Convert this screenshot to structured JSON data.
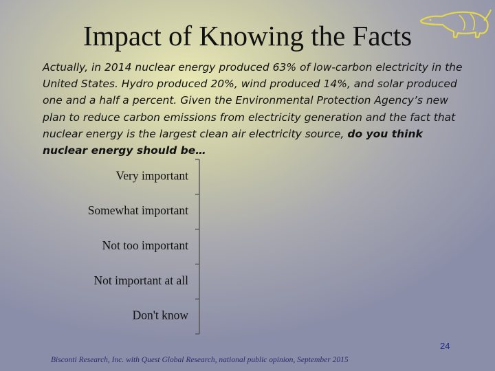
{
  "slide": {
    "title": "Impact of Knowing the Facts",
    "question": {
      "text": "Actually, in 2014 nuclear energy produced 63% of low-carbon electricity in the United States. Hydro produced 20%, wind produced 14%, and solar produced one and a half a percent. Given the Environmental Protection Agency’s new plan to reduce carbon emissions from electricity generation and the fact that nuclear energy is the largest clean air electricity source, ",
      "emphasis": "do you think nuclear energy should be…"
    },
    "page_number": "24",
    "footer_source": "Bisconti Research, Inc. with Quest Global Research, national public opinion, September 2015"
  },
  "logo": {
    "icon": "anteater-logo-icon",
    "color": "#e6d84a"
  },
  "colors": {
    "axis": "#555555",
    "text": "#111111",
    "page_number": "#1a2a8a",
    "footer": "#2a2a6a"
  },
  "chart_data": {
    "type": "bar",
    "orientation": "horizontal",
    "categories": [
      "Very important",
      "Somewhat important",
      "Not too important",
      "Not important at all",
      "Don't know"
    ],
    "values": [
      null,
      null,
      null,
      null,
      null
    ],
    "title": "",
    "xlabel": "",
    "ylabel": "",
    "legend": "none",
    "grid": false
  }
}
